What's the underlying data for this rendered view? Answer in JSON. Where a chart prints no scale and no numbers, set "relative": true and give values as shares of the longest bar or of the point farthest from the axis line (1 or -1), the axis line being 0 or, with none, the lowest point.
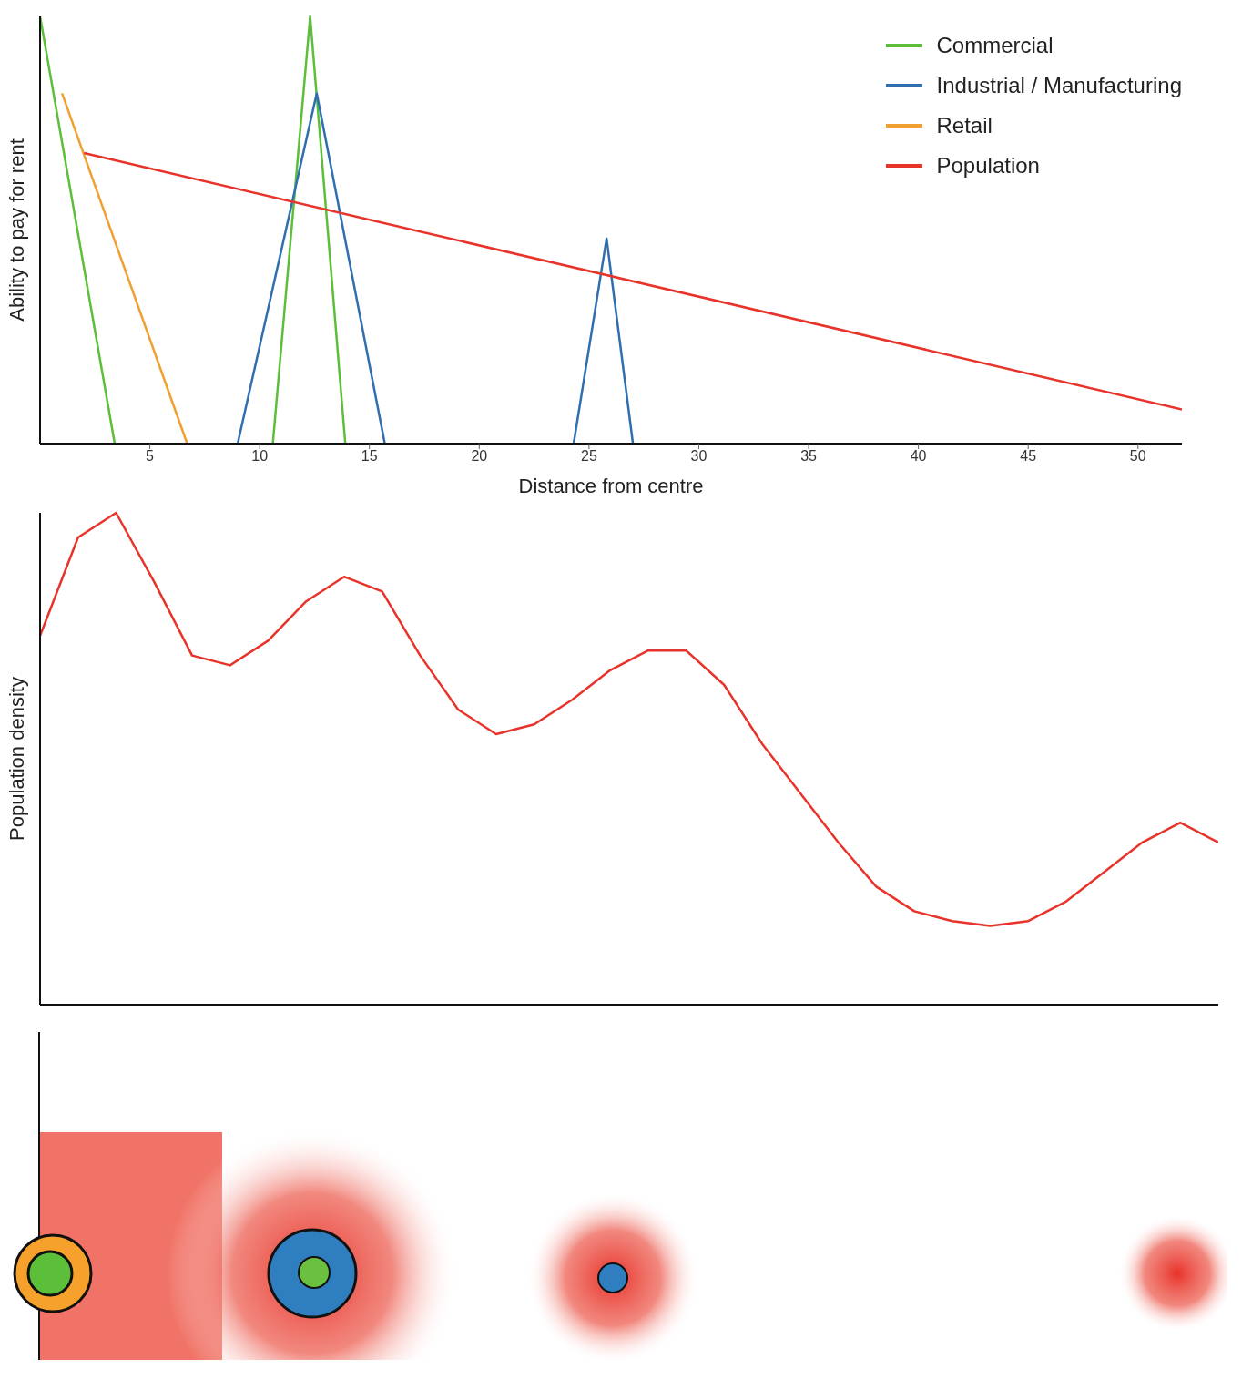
{
  "chart_data": [
    {
      "type": "line",
      "xlabel": "Distance from centre",
      "ylabel": "Ability to pay for rent",
      "relative": true,
      "xlim": [
        0,
        52
      ],
      "xticks": [
        5,
        10,
        15,
        20,
        25,
        30,
        35,
        40,
        45,
        50
      ],
      "legend": "top right",
      "marker": "none",
      "series": [
        {
          "name": "Commercial",
          "color": "#5cbf3a",
          "x": [
            0,
            3.4,
            7,
            10.6,
            12.3,
            13.9
          ],
          "values": [
            1,
            0,
            null,
            0,
            1,
            0
          ]
        },
        {
          "name": "Industrial / Manufacturing",
          "color": "#2f6fb0",
          "x": [
            9.0,
            12.6,
            15.7,
            20,
            24.3,
            25.8,
            27.0
          ],
          "values": [
            0,
            0.82,
            0,
            null,
            0,
            0.48,
            0
          ]
        },
        {
          "name": "Retail",
          "color": "#f0a030",
          "x": [
            1.0,
            6.7
          ],
          "values": [
            0.82,
            0
          ]
        },
        {
          "name": "Population",
          "color": "#e8332a",
          "x": [
            2.0,
            52.0
          ],
          "values": [
            0.68,
            0.08
          ]
        }
      ]
    },
    {
      "type": "line",
      "ylabel": "Population density",
      "relative": true,
      "categories": [
        null,
        null,
        null,
        null,
        null,
        null,
        null,
        null,
        null,
        null,
        null,
        null,
        null,
        null,
        null,
        null,
        null,
        null,
        null,
        null,
        null,
        null,
        null,
        null,
        null,
        null,
        null,
        null,
        null,
        null,
        null,
        null
      ],
      "legend": false,
      "marker": "none",
      "series": [
        {
          "color": "#e8332a",
          "values": [
            0.75,
            0.95,
            1,
            0.86,
            0.71,
            0.69,
            0.74,
            0.82,
            0.87,
            0.84,
            0.71,
            0.6,
            0.55,
            0.57,
            0.62,
            0.68,
            0.72,
            0.72,
            0.65,
            0.53,
            0.43,
            0.33,
            0.24,
            0.19,
            0.17,
            0.16,
            0.17,
            0.21,
            0.27,
            0.33,
            0.37,
            0.33
          ]
        }
      ]
    }
  ]
}
